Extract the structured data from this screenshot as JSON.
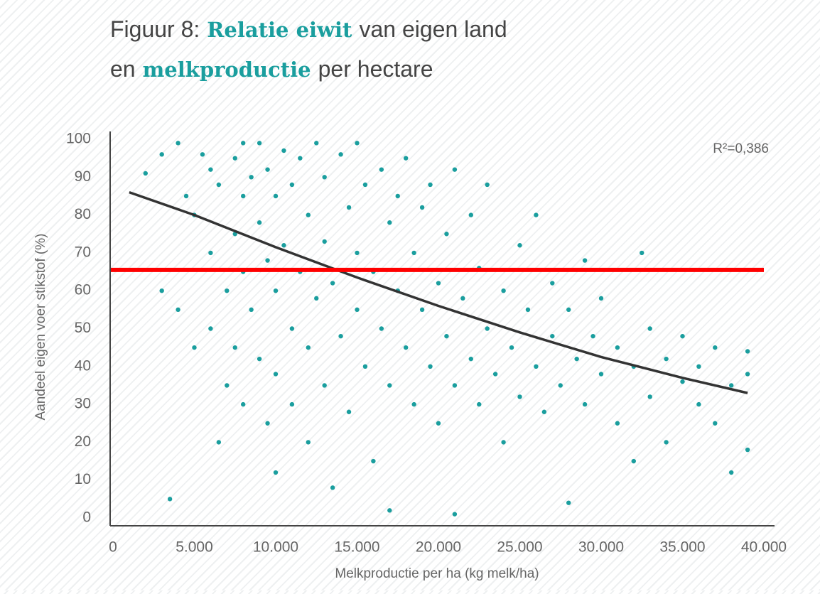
{
  "chart_data": {
    "type": "scatter",
    "title": [
      [
        "Figuur 8:",
        "Relatie eiwit",
        "van eigen land"
      ],
      [
        "en",
        "melkproductie",
        "per hectare"
      ]
    ],
    "xlabel": "Melkproductie per ha (kg melk/ha)",
    "ylabel": "Aandeel eigen voer stikstof (%)",
    "annotation": "R²=0,386",
    "xlim": [
      0,
      40000
    ],
    "xticks": [
      0,
      {
        "value": 5000,
        "label": "5.000"
      },
      {
        "value": 10000,
        "label": "10.000"
      },
      {
        "value": 15000,
        "label": "15.000"
      },
      {
        "value": 20000,
        "label": "20.000"
      },
      {
        "value": 25000,
        "label": "25.000"
      },
      {
        "value": 30000,
        "label": "30.000"
      },
      {
        "value": 35000,
        "label": "35.000"
      },
      {
        "value": 40000,
        "label": "40.000"
      }
    ],
    "ylim": [
      0,
      100
    ],
    "yticks": [
      0,
      10,
      20,
      30,
      40,
      50,
      60,
      70,
      80,
      90,
      100
    ],
    "series": [
      {
        "color": "#1a9e9e",
        "x": [
          2000,
          3000,
          3500,
          3000,
          4000,
          4500,
          4000,
          5000,
          5000,
          5500,
          6000,
          6000,
          6000,
          6500,
          6500,
          7000,
          7000,
          7500,
          7500,
          7500,
          8000,
          8000,
          8000,
          8000,
          8500,
          8500,
          9000,
          9000,
          9000,
          9500,
          9500,
          9500,
          10000,
          10000,
          10000,
          10000,
          10500,
          10500,
          11000,
          11000,
          11000,
          11500,
          11500,
          12000,
          12000,
          12000,
          12500,
          12500,
          13000,
          13000,
          13000,
          13500,
          13500,
          14000,
          14000,
          14500,
          14500,
          15000,
          15000,
          15000,
          15500,
          15500,
          16000,
          16000,
          16500,
          16500,
          17000,
          17000,
          17000,
          17500,
          17500,
          18000,
          18000,
          18500,
          18500,
          19000,
          19000,
          19500,
          19500,
          20000,
          20000,
          20500,
          20500,
          21000,
          21000,
          21000,
          21500,
          22000,
          22000,
          22500,
          22500,
          23000,
          23000,
          23500,
          24000,
          24000,
          24500,
          25000,
          25000,
          25500,
          26000,
          26000,
          26500,
          27000,
          27000,
          27500,
          28000,
          28000,
          28500,
          29000,
          29000,
          29500,
          30000,
          30000,
          31000,
          31000,
          32000,
          32000,
          32500,
          33000,
          33000,
          34000,
          34000,
          35000,
          35000,
          36000,
          36000,
          37000,
          37000,
          38000,
          38000,
          39000,
          39000,
          39000
        ],
        "values": [
          91,
          96,
          5,
          60,
          99,
          85,
          55,
          80,
          45,
          96,
          92,
          70,
          50,
          20,
          88,
          60,
          35,
          95,
          75,
          45,
          99,
          85,
          65,
          30,
          90,
          55,
          99,
          78,
          42,
          92,
          68,
          25,
          12,
          85,
          60,
          38,
          97,
          72,
          50,
          88,
          30,
          65,
          95,
          80,
          45,
          20,
          99,
          58,
          73,
          35,
          90,
          62,
          8,
          96,
          48,
          82,
          28,
          70,
          55,
          99,
          40,
          88,
          65,
          15,
          92,
          50,
          78,
          35,
          2,
          60,
          85,
          45,
          95,
          70,
          30,
          55,
          82,
          40,
          88,
          62,
          25,
          48,
          75,
          35,
          92,
          1,
          58,
          42,
          80,
          30,
          66,
          50,
          88,
          38,
          60,
          20,
          45,
          72,
          32,
          55,
          40,
          80,
          28,
          62,
          48,
          35,
          4,
          55,
          42,
          68,
          30,
          48,
          38,
          58,
          45,
          25,
          40,
          15,
          70,
          50,
          32,
          42,
          20,
          36,
          48,
          30,
          40,
          45,
          25,
          35,
          12,
          38,
          44,
          18
        ]
      },
      {
        "type": "line",
        "color": "#333333",
        "x": [
          1000,
          5000,
          10000,
          15000,
          20000,
          25000,
          30000,
          35000,
          39000
        ],
        "values": [
          86,
          80,
          71.5,
          63.5,
          56,
          49,
          42.5,
          37,
          33
        ]
      }
    ],
    "reference_line": {
      "value": 65.5,
      "color": "#ff0000"
    }
  }
}
